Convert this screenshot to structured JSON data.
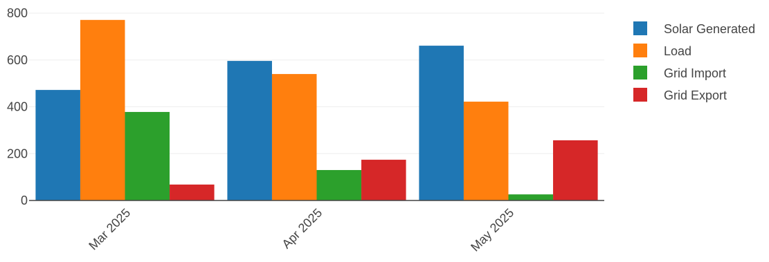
{
  "chart_data": {
    "type": "bar",
    "title": "",
    "xlabel": "",
    "ylabel": "",
    "categories": [
      "Mar 2025",
      "Apr 2025",
      "May 2025"
    ],
    "series": [
      {
        "name": "Solar Generated",
        "color": "#1f77b4",
        "values": [
          472,
          596,
          661
        ]
      },
      {
        "name": "Load",
        "color": "#ff7f0e",
        "values": [
          771,
          540,
          422
        ]
      },
      {
        "name": "Grid Import",
        "color": "#2ca02c",
        "values": [
          378,
          130,
          26
        ]
      },
      {
        "name": "Grid Export",
        "color": "#d62728",
        "values": [
          68,
          174,
          257
        ]
      }
    ],
    "ylim": [
      0,
      800
    ],
    "yticks": [
      0,
      200,
      400,
      600,
      800
    ],
    "grid": true,
    "legend_position": "top-right"
  }
}
